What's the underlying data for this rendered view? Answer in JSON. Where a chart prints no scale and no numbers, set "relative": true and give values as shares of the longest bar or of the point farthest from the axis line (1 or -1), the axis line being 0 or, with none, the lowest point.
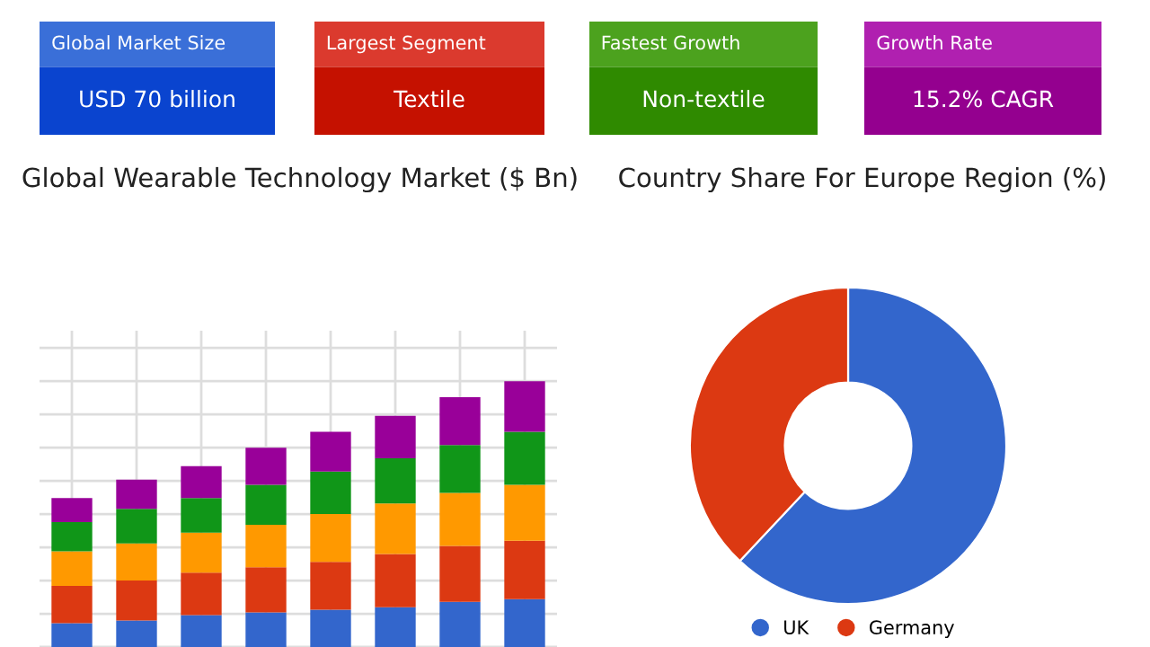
{
  "chart_data": [
    {
      "type": "other",
      "title": "Global Market Size",
      "annotations": [
        "USD 70 billion"
      ],
      "colors": [
        "#3a6fd8",
        "#0a44cf"
      ]
    },
    {
      "type": "other",
      "title": "Largest Segment",
      "annotations": [
        "Textile"
      ],
      "colors": [
        "#db3a2e",
        "#c51100"
      ]
    },
    {
      "type": "other",
      "title": "Fastest Growth",
      "annotations": [
        "Non-textile"
      ],
      "colors": [
        "#4ca21e",
        "#2f8a00"
      ]
    },
    {
      "type": "other",
      "title": "Growth Rate",
      "annotations": [
        "15.2% CAGR"
      ],
      "colors": [
        "#b020b0",
        "#94008f"
      ]
    },
    {
      "type": "bar",
      "title": "Global Wearable Technology Market ($ Bn)",
      "stacked": true,
      "relative": true,
      "grid": true,
      "categories": [
        null,
        null,
        null,
        null,
        null,
        null,
        null,
        null
      ],
      "series": [
        {
          "color": "#3366cc",
          "values": [
            0.09,
            0.1,
            0.12,
            0.13,
            0.14,
            0.15,
            0.17,
            0.18
          ]
        },
        {
          "color": "#dc3912",
          "values": [
            0.14,
            0.15,
            0.16,
            0.17,
            0.18,
            0.2,
            0.21,
            0.22
          ]
        },
        {
          "color": "#ff9900",
          "values": [
            0.13,
            0.14,
            0.15,
            0.16,
            0.18,
            0.19,
            0.2,
            0.21
          ]
        },
        {
          "color": "#109618",
          "values": [
            0.11,
            0.13,
            0.13,
            0.15,
            0.16,
            0.17,
            0.18,
            0.2
          ]
        },
        {
          "color": "#990099",
          "values": [
            0.09,
            0.11,
            0.12,
            0.14,
            0.15,
            0.16,
            0.18,
            0.19
          ]
        }
      ]
    },
    {
      "type": "donut",
      "title": "Country Share For Europe Region (%)",
      "categories": [
        "UK",
        "Germany"
      ],
      "values": [
        62,
        38
      ],
      "colors": [
        "#3366cc",
        "#dc3912"
      ],
      "legend": "bottom"
    }
  ]
}
